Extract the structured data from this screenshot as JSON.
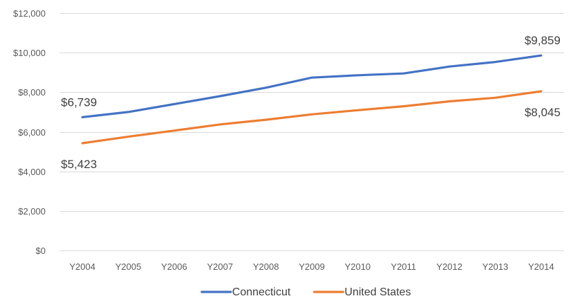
{
  "chart_data": {
    "type": "line",
    "categories": [
      "Y2004",
      "Y2005",
      "Y2006",
      "Y2007",
      "Y2008",
      "Y2009",
      "Y2010",
      "Y2011",
      "Y2012",
      "Y2013",
      "Y2014"
    ],
    "series": [
      {
        "name": "Connecticut",
        "color": "#4472c4",
        "values": [
          6739,
          7000,
          7400,
          7800,
          8230,
          8740,
          8860,
          8950,
          9300,
          9530,
          9859
        ]
      },
      {
        "name": "United States",
        "color": "#ed7d31",
        "values": [
          5423,
          5750,
          6060,
          6370,
          6610,
          6880,
          7090,
          7290,
          7540,
          7720,
          8045
        ]
      }
    ],
    "data_labels": [
      {
        "series": 0,
        "index": 0,
        "text": "$6,739"
      },
      {
        "series": 0,
        "index": 10,
        "text": "$9,859"
      },
      {
        "series": 1,
        "index": 0,
        "text": "$5,423"
      },
      {
        "series": 1,
        "index": 10,
        "text": "$8,045"
      }
    ],
    "yticks": [
      0,
      2000,
      4000,
      6000,
      8000,
      10000,
      12000
    ],
    "ytick_labels": [
      "$0",
      "$2,000",
      "$4,000",
      "$6,000",
      "$8,000",
      "$10,000",
      "$12,000"
    ],
    "ylim": [
      0,
      12000
    ],
    "grid": true,
    "legend_position": "bottom",
    "title": "",
    "xlabel": "",
    "ylabel": ""
  }
}
